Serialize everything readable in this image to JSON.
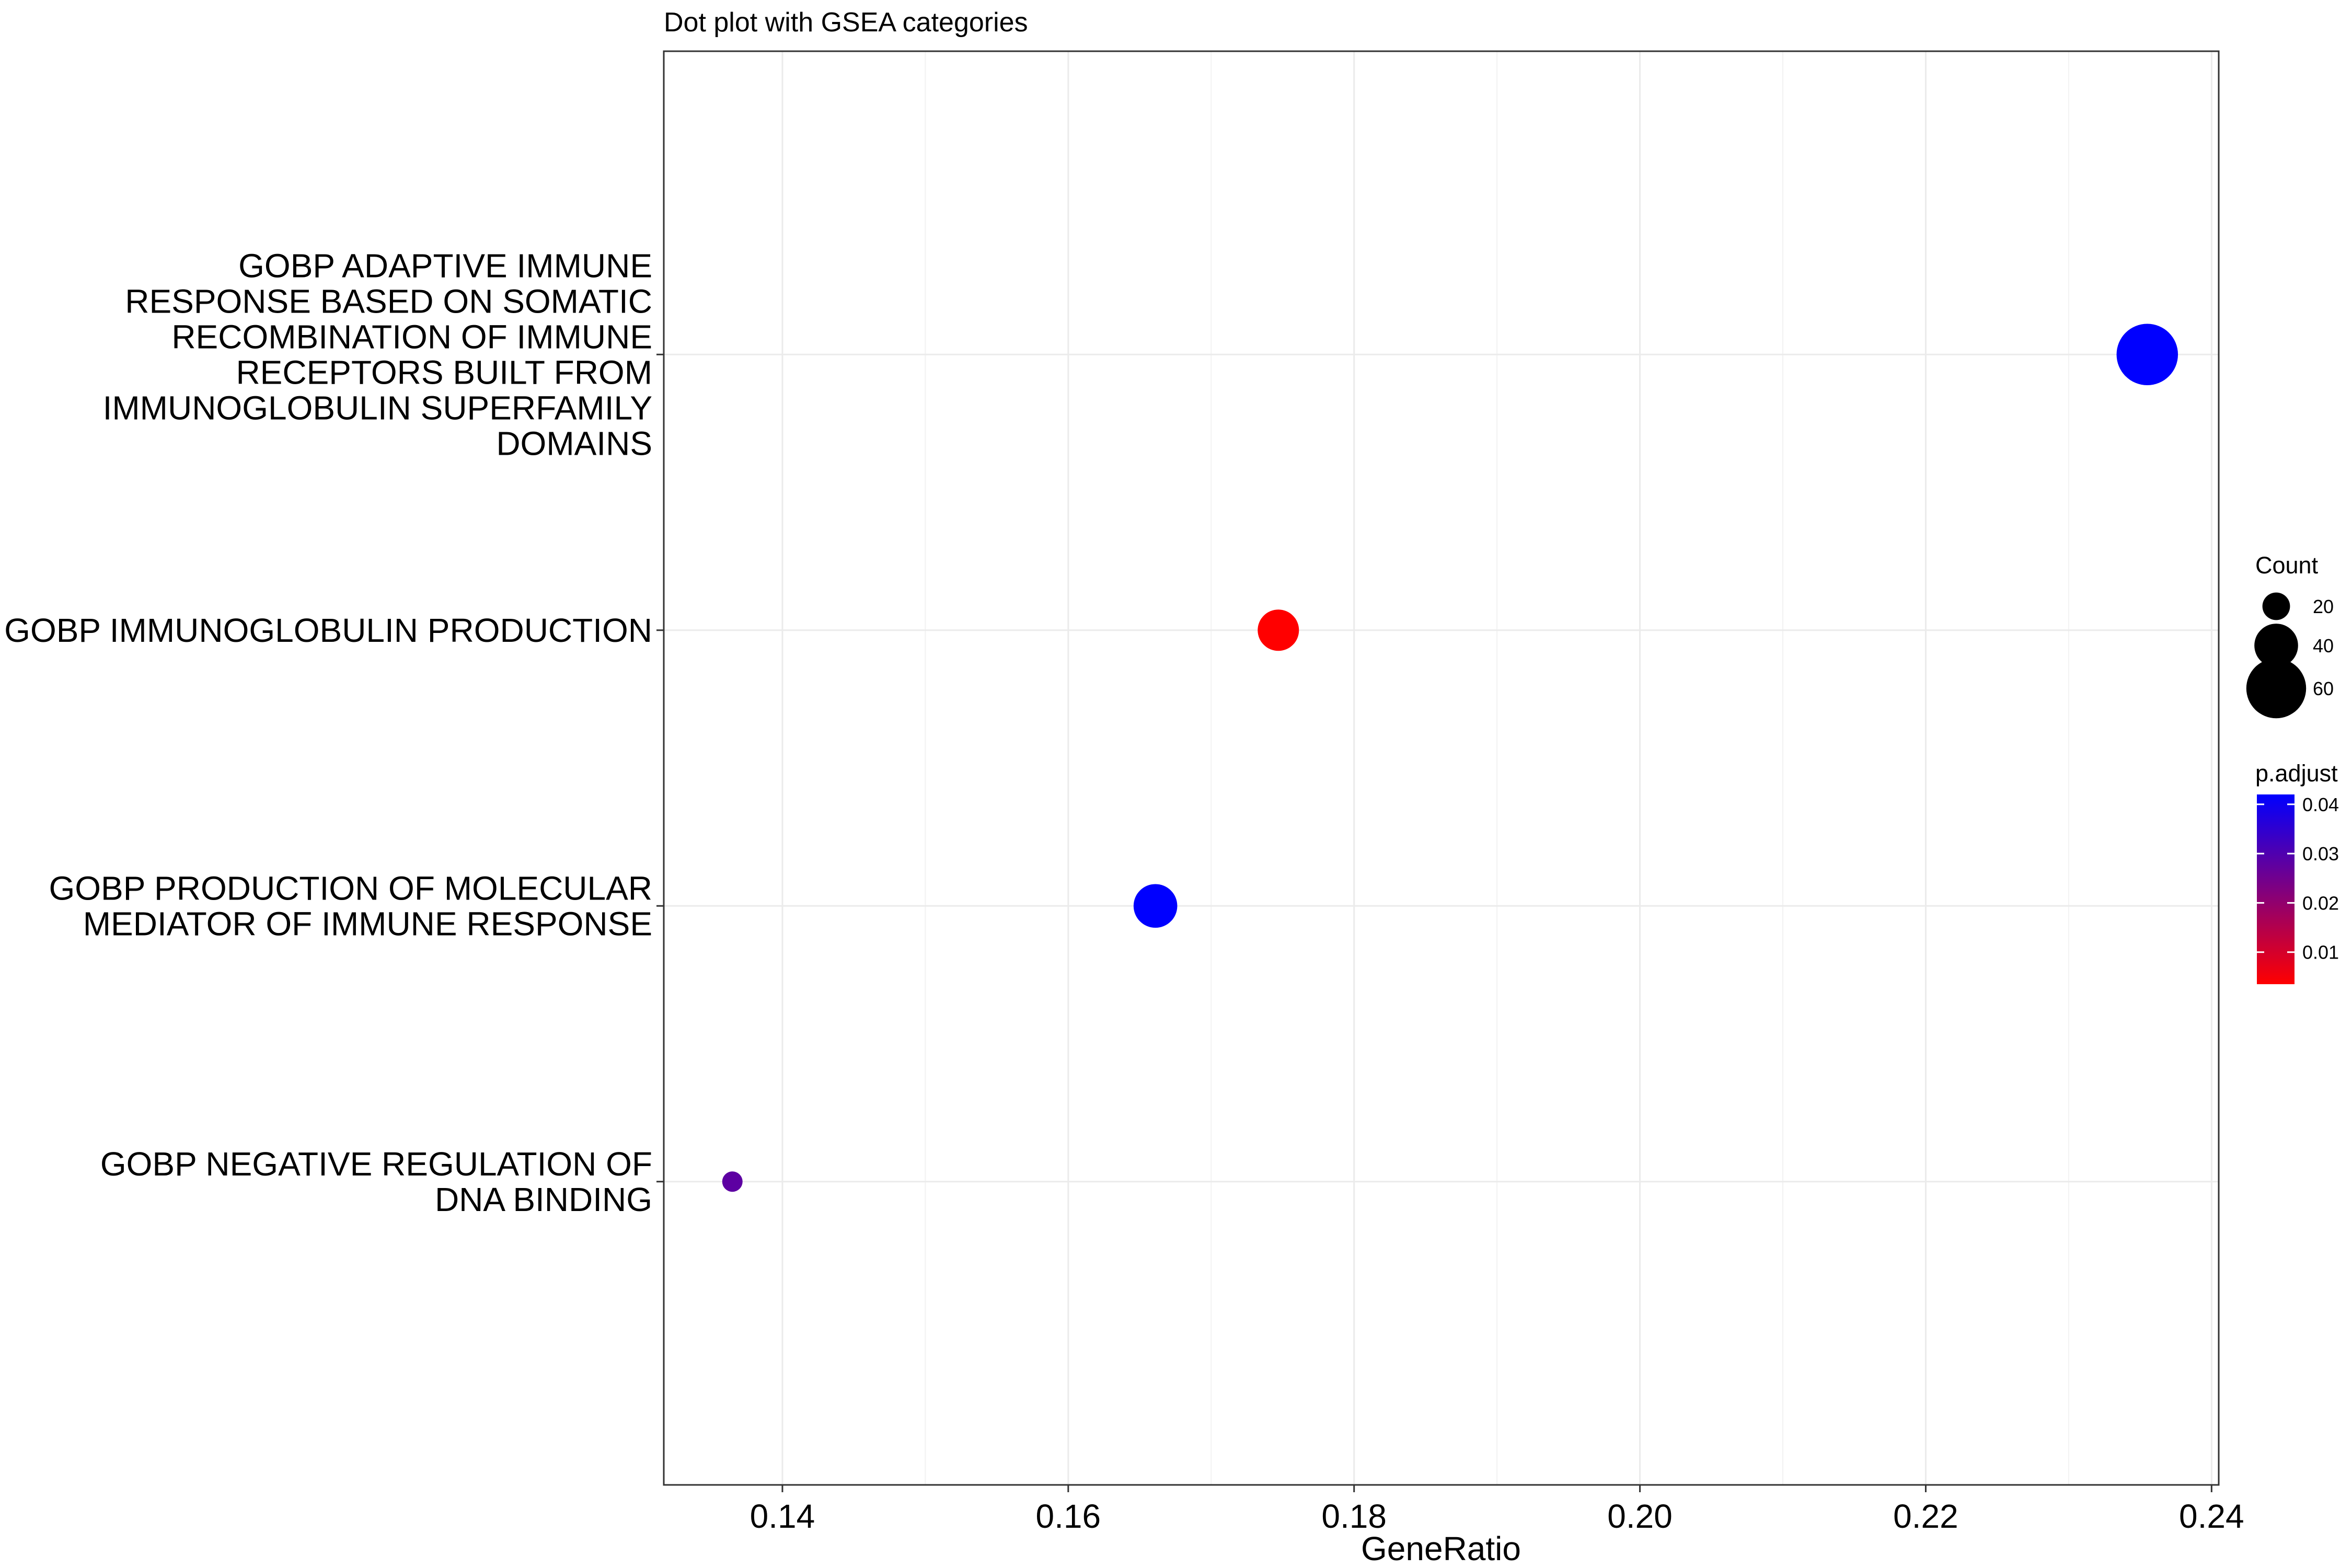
{
  "chart_data": {
    "type": "scatter",
    "title": "Dot plot with GSEA categories",
    "xlabel": "GeneRatio",
    "ylabel": "",
    "xlim": [
      0.1317,
      0.2405
    ],
    "x_ticks": [
      "0.14",
      "0.16",
      "0.18",
      "0.20",
      "0.22",
      "0.24"
    ],
    "x_tick_values": [
      0.14,
      0.16,
      0.18,
      0.2,
      0.22,
      0.24
    ],
    "grid": true,
    "categories": [
      "GOBP ADAPTIVE IMMUNE RESPONSE BASED ON SOMATIC RECOMBINATION OF IMMUNE RECEPTORS BUILT FROM IMMUNOGLOBULIN SUPERFAMILY DOMAINS",
      "GOBP IMMUNOGLOBULIN PRODUCTION",
      "GOBP PRODUCTION OF MOLECULAR MEDIATOR OF IMMUNE RESPONSE",
      "GOBP NEGATIVE REGULATION OF DNA BINDING"
    ],
    "category_lines": [
      [
        "GOBP ADAPTIVE IMMUNE",
        "RESPONSE BASED ON SOMATIC",
        "RECOMBINATION OF IMMUNE",
        "RECEPTORS BUILT FROM",
        "IMMUNOGLOBULIN SUPERFAMILY",
        "DOMAINS"
      ],
      [
        "GOBP IMMUNOGLOBULIN PRODUCTION"
      ],
      [
        "GOBP PRODUCTION OF MOLECULAR",
        "MEDIATOR OF IMMUNE RESPONSE"
      ],
      [
        "GOBP NEGATIVE REGULATION OF",
        "DNA BINDING"
      ]
    ],
    "points": [
      {
        "category_index": 0,
        "x": 0.2355,
        "count": 62,
        "p_adjust": 0.042
      },
      {
        "category_index": 1,
        "x": 0.1747,
        "count": 37,
        "p_adjust": 0.0035
      },
      {
        "category_index": 2,
        "x": 0.1661,
        "count": 40,
        "p_adjust": 0.042
      },
      {
        "category_index": 3,
        "x": 0.1365,
        "count": 11,
        "p_adjust": 0.028
      }
    ],
    "size_legend": {
      "title": "Count",
      "labels": [
        "20",
        "40",
        "60"
      ],
      "values": [
        20,
        40,
        60
      ]
    },
    "color_legend": {
      "title": "p.adjust",
      "labels": [
        "0.04",
        "0.03",
        "0.02",
        "0.01"
      ],
      "values": [
        0.04,
        0.03,
        0.02,
        0.01
      ],
      "range": [
        0.0035,
        0.042
      ],
      "low_color": "#ff0000",
      "high_color": "#0000ff"
    },
    "legend_position": "right"
  }
}
